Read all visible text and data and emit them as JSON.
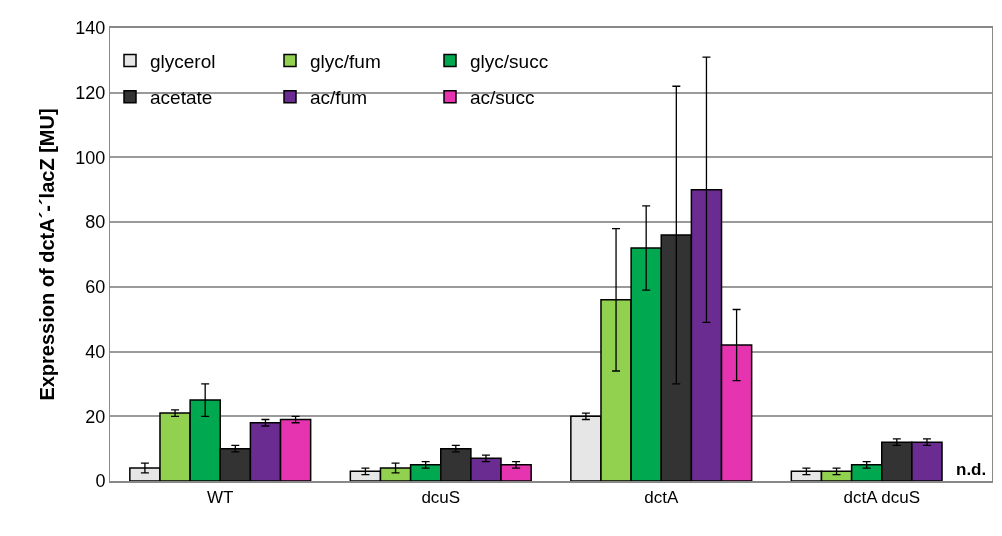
{
  "chart_data": {
    "type": "bar",
    "ylabel": "Expression of dctA´-´lacZ [MU]",
    "categories": [
      "WT",
      "dcuS",
      "dctA",
      "dctA dcuS"
    ],
    "series": [
      {
        "name": "glycerol",
        "color": "#e6e6e6",
        "values": [
          4,
          3,
          20,
          3
        ],
        "errors": [
          1.5,
          1,
          1,
          1
        ]
      },
      {
        "name": "glyc/fum",
        "color": "#92d050",
        "values": [
          21,
          4,
          56,
          3
        ],
        "errors": [
          1,
          1.5,
          22,
          1
        ]
      },
      {
        "name": "glyc/succ",
        "color": "#00a84f",
        "values": [
          25,
          5,
          72,
          5
        ],
        "errors": [
          5,
          1,
          13,
          1
        ]
      },
      {
        "name": "acetate",
        "color": "#333333",
        "values": [
          10,
          10,
          76,
          12
        ],
        "errors": [
          1,
          1,
          46,
          1
        ]
      },
      {
        "name": "ac/fum",
        "color": "#6a2c91",
        "values": [
          18,
          7,
          90,
          12
        ],
        "errors": [
          1,
          1,
          41,
          1
        ]
      },
      {
        "name": "ac/succ",
        "color": "#e633b0",
        "values": [
          19,
          5,
          42,
          null
        ],
        "errors": [
          1,
          1,
          11,
          null
        ]
      }
    ],
    "annotations": [
      "n.d."
    ],
    "ylim": [
      0,
      140
    ],
    "yticks": [
      0,
      20,
      40,
      60,
      80,
      100,
      120,
      140
    ],
    "grid": "y",
    "legend": "top left"
  }
}
